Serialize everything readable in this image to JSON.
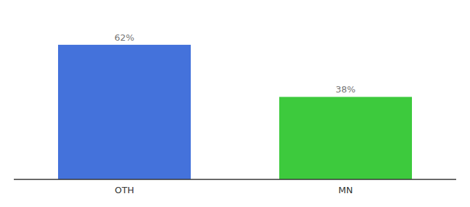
{
  "chart_data": {
    "type": "bar",
    "categories": [
      "OTH",
      "MN"
    ],
    "values": [
      62,
      38
    ],
    "value_labels": [
      "62%",
      "38%"
    ],
    "data_labels": true,
    "colors": [
      "#4472db",
      "#3dca3d"
    ],
    "ylim": [
      0,
      75
    ],
    "tick_labels": "x",
    "grid": false
  }
}
